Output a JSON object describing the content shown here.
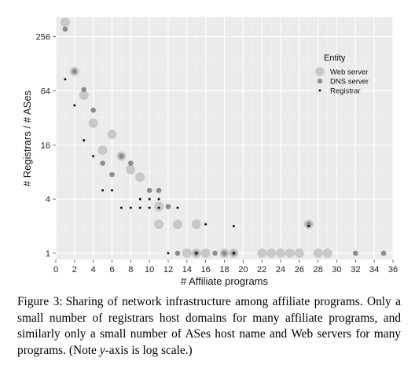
{
  "chart_data": {
    "type": "scatter",
    "xlabel": "# Affiliate programs",
    "ylabel": "# Registrars / # ASes",
    "y_scale": "log2",
    "xlim": [
      0,
      36
    ],
    "ylim": [
      0.85,
      420
    ],
    "x_ticks": [
      0,
      2,
      4,
      6,
      8,
      10,
      12,
      14,
      16,
      18,
      20,
      22,
      24,
      26,
      28,
      30,
      32,
      34,
      36
    ],
    "y_ticks": [
      1,
      4,
      16,
      64,
      256
    ],
    "grid": true,
    "legend": {
      "title": "Entity",
      "placement": "right",
      "entries": [
        "Web server",
        "DNS server",
        "Registrar"
      ]
    },
    "series": [
      {
        "name": "Web server",
        "color": "#c8c8c8",
        "points": [
          [
            1,
            370
          ],
          [
            2,
            105
          ],
          [
            3,
            57
          ],
          [
            4,
            28
          ],
          [
            5,
            14
          ],
          [
            6,
            21
          ],
          [
            7,
            12
          ],
          [
            8,
            8.5
          ],
          [
            9,
            7
          ],
          [
            11,
            3.3
          ],
          [
            11,
            2.1
          ],
          [
            13,
            2.1
          ],
          [
            14,
            1
          ],
          [
            15,
            2.1
          ],
          [
            15,
            1
          ],
          [
            16,
            1
          ],
          [
            18,
            1
          ],
          [
            19,
            1
          ],
          [
            22,
            1
          ],
          [
            23,
            1
          ],
          [
            24,
            1
          ],
          [
            25,
            1
          ],
          [
            26,
            1
          ],
          [
            27,
            2.1
          ],
          [
            28,
            1
          ],
          [
            29,
            1
          ]
        ]
      },
      {
        "name": "DNS server",
        "color": "#8c8c8c",
        "points": [
          [
            1,
            310
          ],
          [
            2,
            105
          ],
          [
            3,
            66
          ],
          [
            4,
            39
          ],
          [
            5,
            10
          ],
          [
            6,
            7.5
          ],
          [
            7,
            12
          ],
          [
            8,
            10
          ],
          [
            10,
            5
          ],
          [
            11,
            5
          ],
          [
            12,
            3.3
          ],
          [
            13,
            1
          ],
          [
            15,
            1
          ],
          [
            17,
            1
          ],
          [
            18,
            1
          ],
          [
            19,
            1
          ],
          [
            27,
            2.1
          ],
          [
            32,
            1
          ],
          [
            35,
            1
          ]
        ]
      },
      {
        "name": "Registrar",
        "color": "#111111",
        "points": [
          [
            1,
            86
          ],
          [
            2,
            44
          ],
          [
            3,
            18
          ],
          [
            4,
            12
          ],
          [
            5,
            5
          ],
          [
            6,
            5
          ],
          [
            7,
            3.2
          ],
          [
            8,
            3.2
          ],
          [
            9,
            3.2
          ],
          [
            9,
            4
          ],
          [
            10,
            3.2
          ],
          [
            10,
            4
          ],
          [
            11,
            3.2
          ],
          [
            11,
            4
          ],
          [
            12,
            1
          ],
          [
            13,
            3.2
          ],
          [
            15,
            1
          ],
          [
            16,
            2.1
          ],
          [
            19,
            2
          ],
          [
            19,
            1
          ],
          [
            27,
            2
          ]
        ]
      }
    ]
  },
  "caption": {
    "label": "Figure 3:",
    "text": "Sharing of network infrastructure among affiliate programs. Only a small number of registrars host domains for many affiliate programs, and similarly only a small number of ASes host name and Web servers for many programs. (Note ",
    "var": "y",
    "tail": "-axis is log scale.)"
  }
}
